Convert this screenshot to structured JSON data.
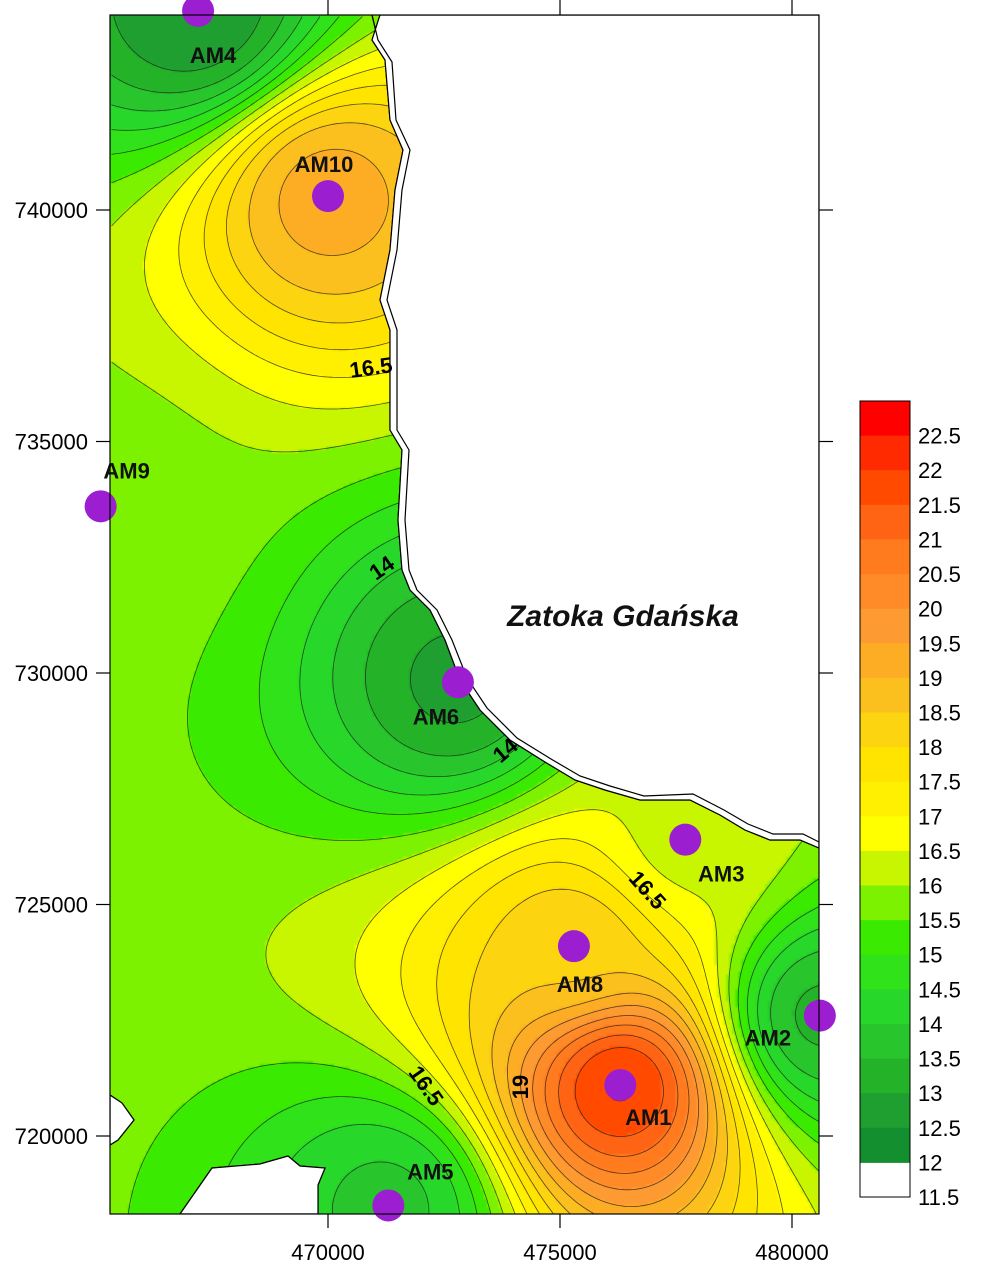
{
  "map": {
    "sea_label": "Zatoka Gdańska",
    "x_ticks": [
      {
        "value": 470000,
        "label": "470000"
      },
      {
        "value": 475000,
        "label": "475000"
      },
      {
        "value": 480000,
        "label": "480000"
      }
    ],
    "y_ticks": [
      {
        "value": 740000,
        "label": "740000"
      },
      {
        "value": 735000,
        "label": "735000"
      },
      {
        "value": 730000,
        "label": "730000"
      },
      {
        "value": 725000,
        "label": "725000"
      },
      {
        "value": 720000,
        "label": "720000"
      }
    ],
    "stations": [
      {
        "id": "AM1",
        "label": "AM1",
        "x": 476300,
        "y": 721100,
        "value": 21.7
      },
      {
        "id": "AM2",
        "label": "AM2",
        "x": 480600,
        "y": 722600,
        "value": 12.8
      },
      {
        "id": "AM3",
        "label": "AM3",
        "x": 477700,
        "y": 726400,
        "value": 15.8
      },
      {
        "id": "AM4",
        "label": "AM4",
        "x": 467200,
        "y": 744300,
        "value": 12.0
      },
      {
        "id": "AM5",
        "label": "AM5",
        "x": 471300,
        "y": 718500,
        "value": 13.3
      },
      {
        "id": "AM6",
        "label": "AM6",
        "x": 472800,
        "y": 729800,
        "value": 12.3
      },
      {
        "id": "AM8",
        "label": "AM8",
        "x": 475300,
        "y": 724100,
        "value": 17.9
      },
      {
        "id": "AM9",
        "label": "AM9",
        "x": 465100,
        "y": 733600,
        "value": 15.3
      },
      {
        "id": "AM10",
        "label": "AM10",
        "x": 470000,
        "y": 740300,
        "value": 18.8
      }
    ],
    "contour_labels": [
      {
        "text": "16.5"
      },
      {
        "text": "14"
      },
      {
        "text": "14"
      },
      {
        "text": "16.5"
      },
      {
        "text": "19"
      },
      {
        "text": "16.5"
      }
    ]
  },
  "legend": {
    "levels": [
      "22.5",
      "22",
      "21.5",
      "21",
      "20.5",
      "20",
      "19.5",
      "19",
      "18.5",
      "18",
      "17.5",
      "17",
      "16.5",
      "16",
      "15.5",
      "15",
      "14.5",
      "14",
      "13.5",
      "13",
      "12.5",
      "12",
      "11.5"
    ],
    "colors": [
      "#ff0000",
      "#ff2a00",
      "#ff4a00",
      "#ff6414",
      "#ff7b1e",
      "#ff8a28",
      "#fd9b32",
      "#fdad23",
      "#fbbf1e",
      "#fdd410",
      "#ffe400",
      "#ffef00",
      "#ffff00",
      "#c8f600",
      "#7df200",
      "#3aea00",
      "#2fe21a",
      "#27d82a",
      "#28c52c",
      "#24b228",
      "#1f9f30",
      "#138f30"
    ]
  }
}
